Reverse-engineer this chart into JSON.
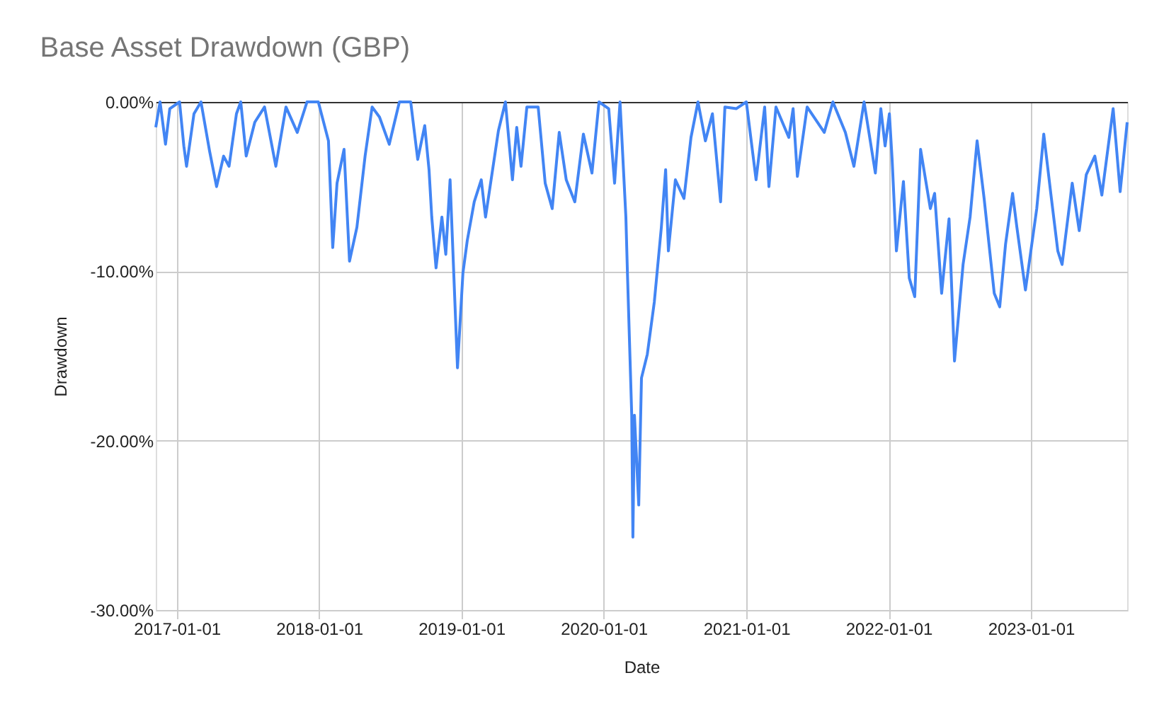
{
  "chart_data": {
    "type": "line",
    "title": "Base Asset Drawdown (GBP)",
    "xlabel": "Date",
    "ylabel": "Drawdown",
    "xlim": [
      "2016-11-08",
      "2023-09-05"
    ],
    "xticks": [
      {
        "value": "2017-01-01",
        "label": "2017-01-01"
      },
      {
        "value": "2018-01-01",
        "label": "2018-01-01"
      },
      {
        "value": "2019-01-01",
        "label": "2019-01-01"
      },
      {
        "value": "2020-01-01",
        "label": "2020-01-01"
      },
      {
        "value": "2021-01-01",
        "label": "2021-01-01"
      },
      {
        "value": "2022-01-01",
        "label": "2022-01-01"
      },
      {
        "value": "2023-01-01",
        "label": "2023-01-01"
      }
    ],
    "ylim": [
      -30,
      0
    ],
    "yticks": [
      {
        "value": -30,
        "label": "-30.00%"
      },
      {
        "value": -20,
        "label": "-20.00%"
      },
      {
        "value": -10,
        "label": "-10.00%"
      },
      {
        "value": 0,
        "label": "0.00%"
      }
    ],
    "grid": true,
    "legend": false,
    "marker": "none",
    "line_style": "solid",
    "x": [
      "2016-11-08",
      "2016-11-19",
      "2016-12-03",
      "2016-12-14",
      "2017-01-08",
      "2017-01-19",
      "2017-01-26",
      "2017-02-14",
      "2017-03-04",
      "2017-03-26",
      "2017-04-13",
      "2017-05-01",
      "2017-05-15",
      "2017-06-03",
      "2017-06-14",
      "2017-06-28",
      "2017-07-20",
      "2017-08-14",
      "2017-09-12",
      "2017-10-08",
      "2017-11-06",
      "2017-12-01",
      "2017-12-30",
      "2018-01-25",
      "2018-02-05",
      "2018-02-16",
      "2018-03-06",
      "2018-03-20",
      "2018-04-08",
      "2018-04-29",
      "2018-05-17",
      "2018-06-05",
      "2018-06-30",
      "2018-07-26",
      "2018-08-24",
      "2018-09-11",
      "2018-09-29",
      "2018-10-10",
      "2018-10-17",
      "2018-10-28",
      "2018-11-12",
      "2018-11-22",
      "2018-12-03",
      "2018-12-22",
      "2019-01-05",
      "2019-01-16",
      "2019-02-03",
      "2019-02-21",
      "2019-03-04",
      "2019-04-06",
      "2019-04-24",
      "2019-05-12",
      "2019-05-23",
      "2019-06-03",
      "2019-06-18",
      "2019-07-17",
      "2019-08-04",
      "2019-08-22",
      "2019-09-09",
      "2019-09-27",
      "2019-10-19",
      "2019-11-10",
      "2019-12-02",
      "2019-12-20",
      "2020-01-14",
      "2020-01-29",
      "2020-02-12",
      "2020-02-27",
      "2020-03-02",
      "2020-03-13",
      "2020-03-16",
      "2020-03-20",
      "2020-03-31",
      "2020-04-07",
      "2020-04-22",
      "2020-05-10",
      "2020-05-28",
      "2020-06-08",
      "2020-06-15",
      "2020-07-03",
      "2020-07-25",
      "2020-08-12",
      "2020-08-30",
      "2020-09-18",
      "2020-10-06",
      "2020-10-27",
      "2020-11-07",
      "2020-12-06",
      "2021-01-01",
      "2021-01-26",
      "2021-02-17",
      "2021-02-28",
      "2021-03-18",
      "2021-04-20",
      "2021-05-01",
      "2021-05-12",
      "2021-06-06",
      "2021-07-20",
      "2021-08-11",
      "2021-09-12",
      "2021-10-04",
      "2021-10-30",
      "2021-11-28",
      "2021-12-12",
      "2021-12-23",
      "2022-01-03",
      "2022-01-10",
      "2022-01-21",
      "2022-02-08",
      "2022-02-23",
      "2022-03-09",
      "2022-03-24",
      "2022-04-18",
      "2022-04-29",
      "2022-05-17",
      "2022-06-05",
      "2022-06-19",
      "2022-07-11",
      "2022-07-29",
      "2022-08-16",
      "2022-09-03",
      "2022-09-29",
      "2022-10-13",
      "2022-10-28",
      "2022-11-15",
      "2022-11-26",
      "2022-12-18",
      "2023-01-16",
      "2023-02-03",
      "2023-02-21",
      "2023-03-11",
      "2023-03-22",
      "2023-04-17",
      "2023-05-05",
      "2023-05-23",
      "2023-06-14",
      "2023-07-02",
      "2023-07-31",
      "2023-08-18",
      "2023-09-05"
    ],
    "series": [
      {
        "color": "#4285f4",
        "values": [
          -1.5,
          0,
          -2.5,
          -0.4,
          0,
          -2.6,
          -3.8,
          -0.7,
          0,
          -2.9,
          -5.0,
          -3.2,
          -3.8,
          -0.7,
          0,
          -3.2,
          -1.2,
          -0.3,
          -3.8,
          -0.3,
          -1.8,
          0,
          0,
          -2.3,
          -8.6,
          -4.8,
          -2.8,
          -9.4,
          -7.4,
          -3.2,
          -0.3,
          -0.9,
          -2.5,
          0,
          0,
          -3.4,
          -1.4,
          -4.0,
          -6.8,
          -9.8,
          -6.8,
          -9.0,
          -4.6,
          -15.7,
          -10.1,
          -8.2,
          -5.9,
          -4.6,
          -6.8,
          -1.7,
          0,
          -4.6,
          -1.5,
          -3.8,
          -0.3,
          -0.3,
          -4.8,
          -6.3,
          -1.8,
          -4.6,
          -5.9,
          -1.9,
          -4.2,
          0,
          -0.4,
          -4.8,
          0,
          -6.8,
          -10.1,
          -18.5,
          -25.7,
          -18.5,
          -23.8,
          -16.3,
          -14.9,
          -11.8,
          -7.4,
          -4.0,
          -8.8,
          -4.6,
          -5.7,
          -2.1,
          0,
          -2.3,
          -0.7,
          -5.9,
          -0.3,
          -0.4,
          0,
          -4.6,
          -0.3,
          -5.0,
          -0.3,
          -2.1,
          -0.4,
          -4.4,
          -0.3,
          -1.8,
          0,
          -1.8,
          -3.8,
          0,
          -4.2,
          -0.4,
          -2.6,
          -0.7,
          -3.4,
          -8.8,
          -4.7,
          -10.4,
          -11.5,
          -2.8,
          -6.3,
          -5.4,
          -11.3,
          -6.9,
          -15.3,
          -9.6,
          -6.8,
          -2.3,
          -5.7,
          -11.3,
          -12.1,
          -8.4,
          -5.4,
          -7.4,
          -11.1,
          -6.3,
          -1.9,
          -5.4,
          -8.8,
          -9.6,
          -4.8,
          -7.6,
          -4.3,
          -3.2,
          -5.5,
          -0.4,
          -5.3,
          -1.2
        ]
      }
    ]
  }
}
